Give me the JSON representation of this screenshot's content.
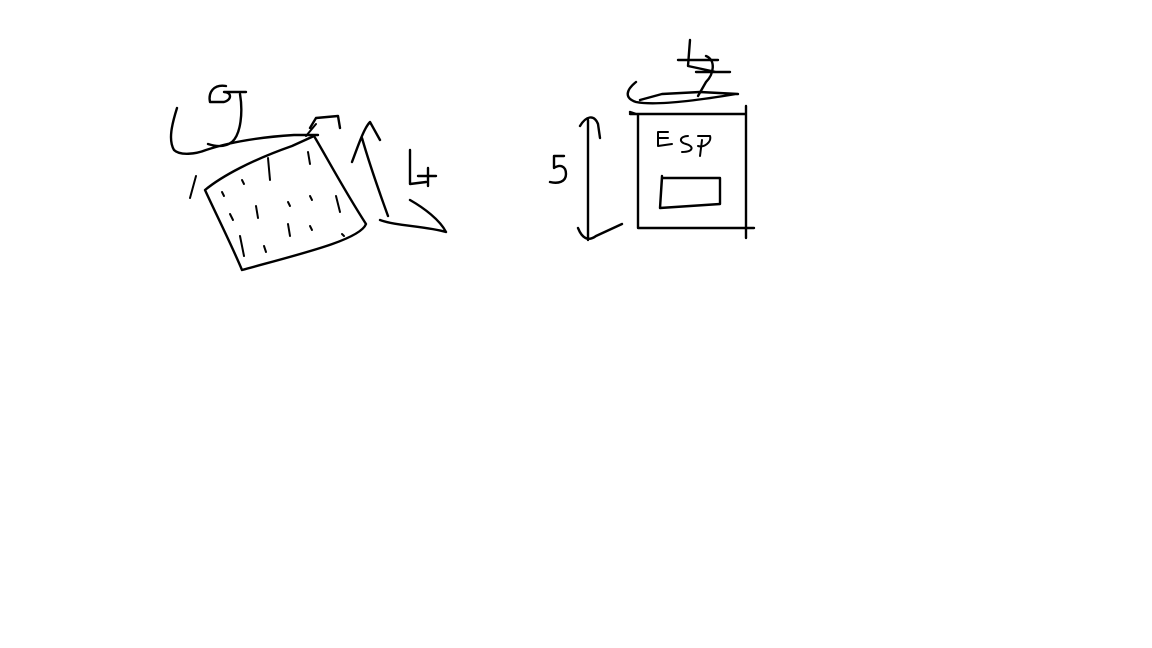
{
  "drawing": {
    "left_figure": {
      "dim_width": "6",
      "dim_height": "4"
    },
    "right_figure": {
      "dim_width": "4",
      "dim_height": "5",
      "box_label": "ESP"
    },
    "ink_color": "#000000",
    "background_color": "#ffffff"
  }
}
